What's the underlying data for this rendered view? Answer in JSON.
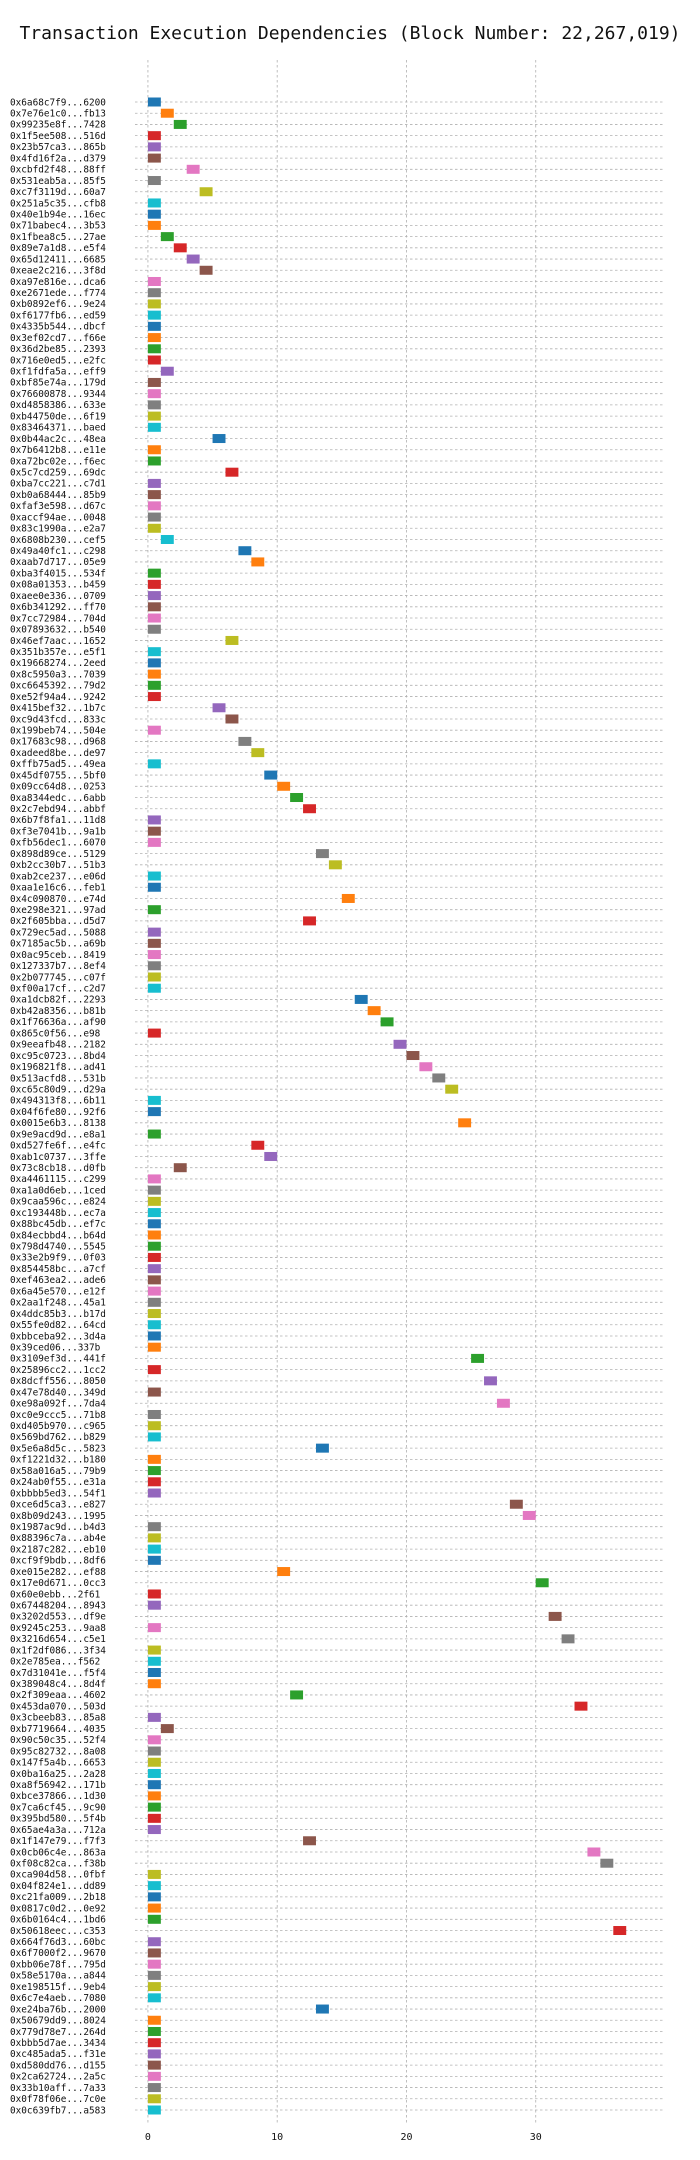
{
  "chart_data": {
    "type": "gantt",
    "title": "Transaction Execution Dependencies (Block Number: 22,267,019)",
    "xlabel": "",
    "ylabel": "",
    "xlim": [
      -1,
      40
    ],
    "x_ticks": [
      0,
      10,
      20,
      30
    ],
    "grid": true,
    "legend": "none",
    "colors": [
      "#1f77b4",
      "#ff7f0e",
      "#2ca02c",
      "#d62728",
      "#9467bd",
      "#8c564b",
      "#e377c2",
      "#7f7f7f",
      "#bcbd22",
      "#17becf"
    ],
    "bar_duration": 1,
    "transactions": [
      {
        "label": "0x6a68c7f9...6200",
        "start": 0
      },
      {
        "label": "0x7e76e1c0...fb13",
        "start": 1
      },
      {
        "label": "0x99235e8f...7428",
        "start": 2
      },
      {
        "label": "0x1f5ee508...516d",
        "start": 0
      },
      {
        "label": "0x23b57ca3...865b",
        "start": 0
      },
      {
        "label": "0x4fd16f2a...d379",
        "start": 0
      },
      {
        "label": "0xcbfd2f48...88ff",
        "start": 3
      },
      {
        "label": "0x531eab5a...85f5",
        "start": 0
      },
      {
        "label": "0xc7f3119d...60a7",
        "start": 4
      },
      {
        "label": "0x251a5c35...cfb8",
        "start": 0
      },
      {
        "label": "0x40e1b94e...16ec",
        "start": 0
      },
      {
        "label": "0x71babec4...3b53",
        "start": 0
      },
      {
        "label": "0x1fbea8c5...27ae",
        "start": 1
      },
      {
        "label": "0x89e7a1d8...e5f4",
        "start": 2
      },
      {
        "label": "0x65d12411...6685",
        "start": 3
      },
      {
        "label": "0xeae2c216...3f8d",
        "start": 4
      },
      {
        "label": "0xa97e816e...dca6",
        "start": 0
      },
      {
        "label": "0xe2671ede...f774",
        "start": 0
      },
      {
        "label": "0xb0892ef6...9e24",
        "start": 0
      },
      {
        "label": "0xf6177fb6...ed59",
        "start": 0
      },
      {
        "label": "0x4335b544...dbcf",
        "start": 0
      },
      {
        "label": "0x3ef02cd7...f66e",
        "start": 0
      },
      {
        "label": "0x36d2be85...2393",
        "start": 0
      },
      {
        "label": "0x716e0ed5...e2fc",
        "start": 0
      },
      {
        "label": "0xf1fdfa5a...eff9",
        "start": 1
      },
      {
        "label": "0xbf85e74a...179d",
        "start": 0
      },
      {
        "label": "0x76600878...9344",
        "start": 0
      },
      {
        "label": "0xd4858386...633e",
        "start": 0
      },
      {
        "label": "0xb44750de...6f19",
        "start": 0
      },
      {
        "label": "0x83464371...baed",
        "start": 0
      },
      {
        "label": "0x0b44ac2c...48ea",
        "start": 5
      },
      {
        "label": "0x7b6412b8...e11e",
        "start": 0
      },
      {
        "label": "0xa72bc02e...f6ec",
        "start": 0
      },
      {
        "label": "0x5c7cd259...69dc",
        "start": 6
      },
      {
        "label": "0xba7cc221...c7d1",
        "start": 0
      },
      {
        "label": "0xb0a68444...85b9",
        "start": 0
      },
      {
        "label": "0xfaf3e598...d67c",
        "start": 0
      },
      {
        "label": "0xaccf94ae...0048",
        "start": 0
      },
      {
        "label": "0x83c1990a...e2a7",
        "start": 0
      },
      {
        "label": "0x6808b230...cef5",
        "start": 1
      },
      {
        "label": "0x49a40fc1...c298",
        "start": 7
      },
      {
        "label": "0xaab7d717...05e9",
        "start": 8
      },
      {
        "label": "0xba3f4015...534f",
        "start": 0
      },
      {
        "label": "0x08a01353...b459",
        "start": 0
      },
      {
        "label": "0xaee0e336...0709",
        "start": 0
      },
      {
        "label": "0x6b341292...ff70",
        "start": 0
      },
      {
        "label": "0x7cc72984...704d",
        "start": 0
      },
      {
        "label": "0x07893632...b540",
        "start": 0
      },
      {
        "label": "0x46ef7aac...1652",
        "start": 6
      },
      {
        "label": "0x351b357e...e5f1",
        "start": 0
      },
      {
        "label": "0x19668274...2eed",
        "start": 0
      },
      {
        "label": "0x8c5950a3...7039",
        "start": 0
      },
      {
        "label": "0xc6645392...79d2",
        "start": 0
      },
      {
        "label": "0xe52f94a4...9242",
        "start": 0
      },
      {
        "label": "0x415bef32...1b7c",
        "start": 5
      },
      {
        "label": "0xc9d43fcd...833c",
        "start": 6
      },
      {
        "label": "0x199beb74...504e",
        "start": 0
      },
      {
        "label": "0x17683c98...d968",
        "start": 7
      },
      {
        "label": "0xadeed8be...de97",
        "start": 8
      },
      {
        "label": "0xffb75ad5...49ea",
        "start": 0
      },
      {
        "label": "0x45df0755...5bf0",
        "start": 9
      },
      {
        "label": "0x09cc64d8...0253",
        "start": 10
      },
      {
        "label": "0xa8344edc...6abb",
        "start": 11
      },
      {
        "label": "0x2c7ebd94...abbf",
        "start": 12
      },
      {
        "label": "0x6b7f8fa1...11d8",
        "start": 0
      },
      {
        "label": "0xf3e7041b...9a1b",
        "start": 0
      },
      {
        "label": "0xfb56dec1...6070",
        "start": 0
      },
      {
        "label": "0x898d89ce...5129",
        "start": 13
      },
      {
        "label": "0xb2cc30b7...51b3",
        "start": 14
      },
      {
        "label": "0xab2ce237...e06d",
        "start": 0
      },
      {
        "label": "0xaa1e16c6...feb1",
        "start": 0
      },
      {
        "label": "0x4c090870...e74d",
        "start": 15
      },
      {
        "label": "0xe298e321...97ad",
        "start": 0
      },
      {
        "label": "0x2f605bba...d5d7",
        "start": 12
      },
      {
        "label": "0x729ec5ad...5088",
        "start": 0
      },
      {
        "label": "0x7185ac5b...a69b",
        "start": 0
      },
      {
        "label": "0x0ac95ceb...8419",
        "start": 0
      },
      {
        "label": "0x127337b7...8ef4",
        "start": 0
      },
      {
        "label": "0x2b077745...c07f",
        "start": 0
      },
      {
        "label": "0xf00a17cf...c2d7",
        "start": 0
      },
      {
        "label": "0xa1dcb82f...2293",
        "start": 16
      },
      {
        "label": "0xb42a8356...b81b",
        "start": 17
      },
      {
        "label": "0x1f76636a...af90",
        "start": 18
      },
      {
        "label": "0x865c0f56...e98",
        "start": 0
      },
      {
        "label": "0x9eeafb48...2182",
        "start": 19
      },
      {
        "label": "0xc95c0723...8bd4",
        "start": 20
      },
      {
        "label": "0x196821f8...ad41",
        "start": 21
      },
      {
        "label": "0x513acfd8...531b",
        "start": 22
      },
      {
        "label": "0xc65c80d9...d29a",
        "start": 23
      },
      {
        "label": "0x494313f8...6b11",
        "start": 0
      },
      {
        "label": "0x04f6fe80...92f6",
        "start": 0
      },
      {
        "label": "0x0015e6b3...8138",
        "start": 24
      },
      {
        "label": "0x9e9acd9d...e8a1",
        "start": 0
      },
      {
        "label": "0xd527fe6f...e4fc",
        "start": 8
      },
      {
        "label": "0xab1c0737...3ffe",
        "start": 9
      },
      {
        "label": "0x73c8cb18...d0fb",
        "start": 2
      },
      {
        "label": "0xa4461115...c299",
        "start": 0
      },
      {
        "label": "0xa1a0d6eb...1ced",
        "start": 0
      },
      {
        "label": "0x9caa596c...e824",
        "start": 0
      },
      {
        "label": "0xc193448b...ec7a",
        "start": 0
      },
      {
        "label": "0x88bc45db...ef7c",
        "start": 0
      },
      {
        "label": "0x84ecbbd4...b64d",
        "start": 0
      },
      {
        "label": "0x798d4740...5545",
        "start": 0
      },
      {
        "label": "0x33e2b9f9...0f03",
        "start": 0
      },
      {
        "label": "0x854458bc...a7cf",
        "start": 0
      },
      {
        "label": "0xef463ea2...ade6",
        "start": 0
      },
      {
        "label": "0x6a45e570...e12f",
        "start": 0
      },
      {
        "label": "0x2aa1f248...45a1",
        "start": 0
      },
      {
        "label": "0x4ddc85b3...b17d",
        "start": 0
      },
      {
        "label": "0x55fe0d82...64cd",
        "start": 0
      },
      {
        "label": "0xbbceba92...3d4a",
        "start": 0
      },
      {
        "label": "0x39ced06...337b",
        "start": 0
      },
      {
        "label": "0x3109ef3d...441f",
        "start": 25
      },
      {
        "label": "0x25896cc2...1cc2",
        "start": 0
      },
      {
        "label": "0x8dcff556...8050",
        "start": 26
      },
      {
        "label": "0x47e78d40...349d",
        "start": 0
      },
      {
        "label": "0xe98a092f...7da4",
        "start": 27
      },
      {
        "label": "0xc0e9ccc5...71b8",
        "start": 0
      },
      {
        "label": "0xd405b970...c965",
        "start": 0
      },
      {
        "label": "0x569bd762...b829",
        "start": 0
      },
      {
        "label": "0x5e6a8d5c...5823",
        "start": 13
      },
      {
        "label": "0xf1221d32...b180",
        "start": 0
      },
      {
        "label": "0x58a016a5...79b9",
        "start": 0
      },
      {
        "label": "0x24ab0f55...e31a",
        "start": 0
      },
      {
        "label": "0xbbbb5ed3...54f1",
        "start": 0
      },
      {
        "label": "0xce6d5ca3...e827",
        "start": 28
      },
      {
        "label": "0x8b09d243...1995",
        "start": 29
      },
      {
        "label": "0x1987ac9d...b4d3",
        "start": 0
      },
      {
        "label": "0x88396c7a...ab4e",
        "start": 0
      },
      {
        "label": "0x2187c282...eb10",
        "start": 0
      },
      {
        "label": "0xcf9f9bdb...8df6",
        "start": 0
      },
      {
        "label": "0xe015e282...ef88",
        "start": 10
      },
      {
        "label": "0x17e0d671...0cc3",
        "start": 30
      },
      {
        "label": "0x60e0ebb...2f61",
        "start": 0
      },
      {
        "label": "0x67448204...8943",
        "start": 0
      },
      {
        "label": "0x3202d553...df9e",
        "start": 31
      },
      {
        "label": "0x9245c253...9aa8",
        "start": 0
      },
      {
        "label": "0x3216d654...c5e1",
        "start": 32
      },
      {
        "label": "0x1f2df086...3f34",
        "start": 0
      },
      {
        "label": "0x2e785ea...f562",
        "start": 0
      },
      {
        "label": "0x7d31041e...f5f4",
        "start": 0
      },
      {
        "label": "0x389048c4...8d4f",
        "start": 0
      },
      {
        "label": "0x2f309eaa...4602",
        "start": 11
      },
      {
        "label": "0x453da070...503d",
        "start": 33
      },
      {
        "label": "0x3cbeeb83...85a8",
        "start": 0
      },
      {
        "label": "0xb7719664...4035",
        "start": 1
      },
      {
        "label": "0x90c50c35...52f4",
        "start": 0
      },
      {
        "label": "0x95c82732...8a08",
        "start": 0
      },
      {
        "label": "0x147f5a4b...6653",
        "start": 0
      },
      {
        "label": "0x0ba16a25...2a28",
        "start": 0
      },
      {
        "label": "0xa8f56942...171b",
        "start": 0
      },
      {
        "label": "0xbce37866...1d30",
        "start": 0
      },
      {
        "label": "0x7ca6cf45...9c90",
        "start": 0
      },
      {
        "label": "0x395bd580...5f4b",
        "start": 0
      },
      {
        "label": "0x65ae4a3a...712a",
        "start": 0
      },
      {
        "label": "0x1f147e79...f7f3",
        "start": 12
      },
      {
        "label": "0x0cb06c4e...863a",
        "start": 34
      },
      {
        "label": "0xf08c82ca...f38b",
        "start": 35
      },
      {
        "label": "0xca904d58...0fbf",
        "start": 0
      },
      {
        "label": "0x04f824e1...dd89",
        "start": 0
      },
      {
        "label": "0xc21fa009...2b18",
        "start": 0
      },
      {
        "label": "0x0817c0d2...0e92",
        "start": 0
      },
      {
        "label": "0x6b0164c4...1bd6",
        "start": 0
      },
      {
        "label": "0x50618eec...c353",
        "start": 36
      },
      {
        "label": "0x664f76d3...60bc",
        "start": 0
      },
      {
        "label": "0x6f7000f2...9670",
        "start": 0
      },
      {
        "label": "0xbb06e78f...795d",
        "start": 0
      },
      {
        "label": "0x58e5170a...a844",
        "start": 0
      },
      {
        "label": "0xe198515f...9eb4",
        "start": 0
      },
      {
        "label": "0x6c7e4aeb...7080",
        "start": 0
      },
      {
        "label": "0xe24ba76b...2000",
        "start": 13
      },
      {
        "label": "0x50679dd9...8024",
        "start": 0
      },
      {
        "label": "0x779d78e7...264d",
        "start": 0
      },
      {
        "label": "0xbbb5d7ae...3434",
        "start": 0
      },
      {
        "label": "0xc485ada5...f31e",
        "start": 0
      },
      {
        "label": "0xd580dd76...d155",
        "start": 0
      },
      {
        "label": "0x2ca62724...2a5c",
        "start": 0
      },
      {
        "label": "0x33b10aff...7a33",
        "start": 0
      },
      {
        "label": "0x0f78f06e...7c0e",
        "start": 0
      },
      {
        "label": "0x0c639fb7...a583",
        "start": 0
      }
    ]
  }
}
